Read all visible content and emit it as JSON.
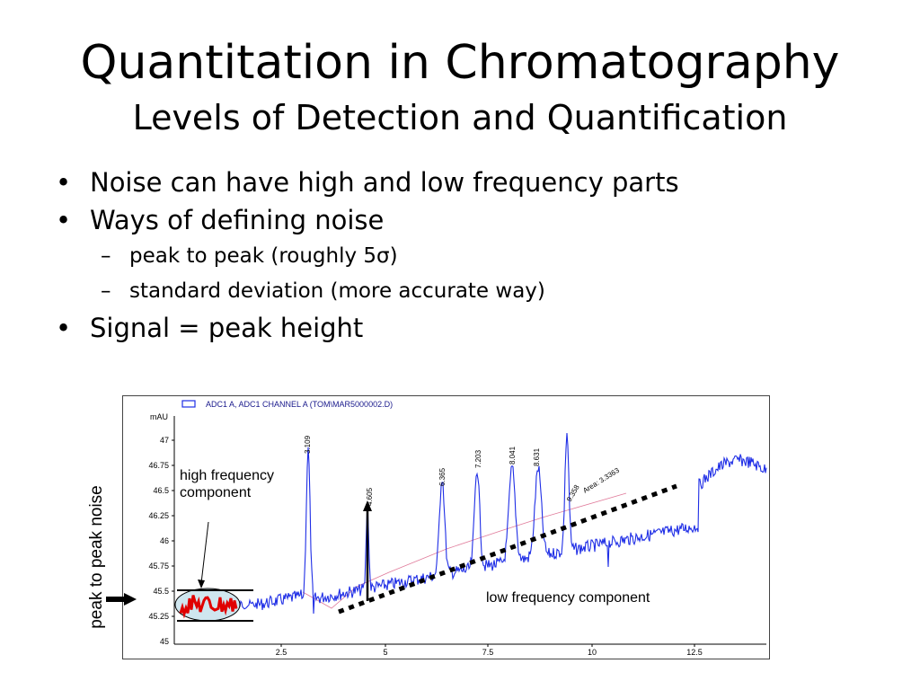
{
  "slide": {
    "title": "Quantitation in Chromatography",
    "subtitle": "Levels of Detection and Quantification"
  },
  "bullets": [
    {
      "text": "Noise can have high and low frequency parts",
      "level": 1
    },
    {
      "text": "Ways of defining noise",
      "level": 1
    },
    {
      "text": "peak to peak (roughly 5σ)",
      "level": 2
    },
    {
      "text": "standard deviation (more accurate way)",
      "level": 2
    },
    {
      "text": "Signal = peak height",
      "level": 1
    }
  ],
  "sub_dash": "–",
  "chromatogram": {
    "legend": "ADC1 A, ADC1 CHANNEL A (TOM\\MAR5000002.D)",
    "y_unit": "mAU",
    "y_ticks": [
      "47",
      "46.75",
      "46.5",
      "46.25",
      "46",
      "45.75",
      "45.5",
      "45.25",
      "45"
    ],
    "x_ticks": [
      "2.5",
      "5",
      "7.5",
      "10",
      "12.5"
    ],
    "peak_labels": [
      "3.109",
      "4.605",
      "6.365",
      "7.203",
      "8.041",
      "8.631",
      "9.358"
    ],
    "peak_annotation": "Area: 3.3363",
    "trace_color": "#1f2ee6",
    "noise_color": "#e00000"
  },
  "annotations": {
    "peak_to_peak": "peak to peak noise",
    "high_frequency": [
      "high frequency",
      "component"
    ],
    "low_frequency": "low frequency component"
  }
}
